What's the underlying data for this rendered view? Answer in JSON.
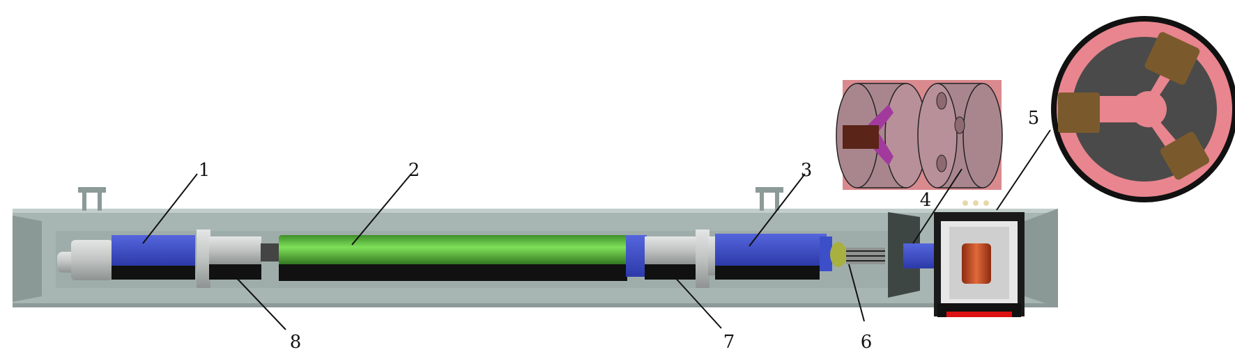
{
  "labels": {
    "n1": "1",
    "n2": "2",
    "n3": "3",
    "n4": "4",
    "n5": "5",
    "n6": "6",
    "n7": "7",
    "n8": "8"
  },
  "colors": {
    "housing": "#a8b6b3",
    "housing_dark": "#8c9a98",
    "blue_part": "#3d4fc8",
    "green_rod": "#5fbf3f",
    "black": "#111111",
    "gray_part": "#bfc3c2",
    "pink_panel": "#d98a8e",
    "disk": "#a9868e",
    "salmon": "#e8858e",
    "dark_gray": "#4a4a4a",
    "brown": "#7a5a2c"
  }
}
